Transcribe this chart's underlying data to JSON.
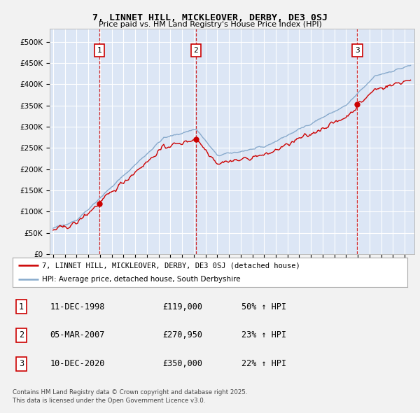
{
  "title": "7, LINNET HILL, MICKLEOVER, DERBY, DE3 0SJ",
  "subtitle": "Price paid vs. HM Land Registry's House Price Index (HPI)",
  "legend_line1": "7, LINNET HILL, MICKLEOVER, DERBY, DE3 0SJ (detached house)",
  "legend_line2": "HPI: Average price, detached house, South Derbyshire",
  "footer1": "Contains HM Land Registry data © Crown copyright and database right 2025.",
  "footer2": "This data is licensed under the Open Government Licence v3.0.",
  "sale_color": "#cc0000",
  "hpi_color": "#88aacc",
  "bg_color": "#dce6f5",
  "plot_bg": "#dce6f5",
  "grid_color": "#ffffff",
  "dashed_color": "#cc0000",
  "ylim": [
    0,
    530000
  ],
  "yticks": [
    0,
    50000,
    100000,
    150000,
    200000,
    250000,
    300000,
    350000,
    400000,
    450000,
    500000
  ],
  "ytick_labels": [
    "£0",
    "£50K",
    "£100K",
    "£150K",
    "£200K",
    "£250K",
    "£300K",
    "£350K",
    "£400K",
    "£450K",
    "£500K"
  ],
  "sales": [
    {
      "date": 1998.95,
      "price": 119000,
      "label": "1"
    },
    {
      "date": 2007.18,
      "price": 270950,
      "label": "2"
    },
    {
      "date": 2020.95,
      "price": 350000,
      "label": "3"
    }
  ],
  "sale_table": [
    {
      "num": "1",
      "date": "11-DEC-1998",
      "price": "£119,000",
      "hpi": "50% ↑ HPI"
    },
    {
      "num": "2",
      "date": "05-MAR-2007",
      "price": "£270,950",
      "hpi": "23% ↑ HPI"
    },
    {
      "num": "3",
      "date": "10-DEC-2020",
      "price": "£350,000",
      "hpi": "22% ↑ HPI"
    }
  ]
}
